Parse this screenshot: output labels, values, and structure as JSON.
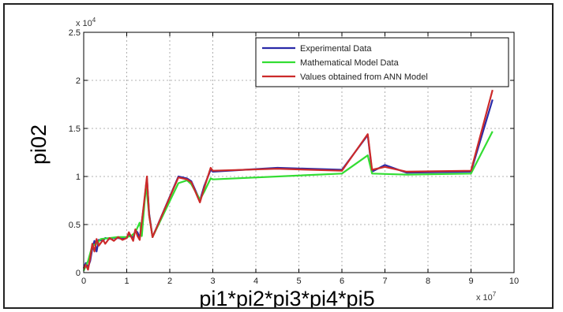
{
  "chart_data": {
    "type": "line",
    "title": "",
    "xlabel": "pi1*pi2*pi3*pi4*pi5",
    "ylabel": "pi02",
    "x_multiplier_label": "x 10",
    "x_multiplier_exponent": "7",
    "y_multiplier_label": "x 10",
    "y_multiplier_exponent": "4",
    "xlim": [
      0,
      10
    ],
    "ylim": [
      0,
      2.5
    ],
    "x_ticks": [
      0,
      1,
      2,
      3,
      4,
      5,
      6,
      7,
      8,
      9,
      10
    ],
    "x_tick_labels": [
      "0",
      "1",
      "2",
      "3",
      "4",
      "5",
      "6",
      "7",
      "8",
      "9",
      "10"
    ],
    "y_ticks": [
      0,
      0.5,
      1,
      1.5,
      2,
      2.5
    ],
    "y_tick_labels": [
      "0",
      "0.5",
      "1",
      "1.5",
      "2",
      "2.5"
    ],
    "grid": true,
    "legend_position": "top-right",
    "series": [
      {
        "name": "Experimental Data",
        "color": "#2a2aa8",
        "points": [
          [
            0.0,
            0.05
          ],
          [
            0.05,
            0.1
          ],
          [
            0.1,
            0.06
          ],
          [
            0.15,
            0.12
          ],
          [
            0.2,
            0.25
          ],
          [
            0.25,
            0.33
          ],
          [
            0.3,
            0.22
          ],
          [
            0.35,
            0.34
          ],
          [
            0.45,
            0.33
          ],
          [
            0.5,
            0.36
          ],
          [
            0.6,
            0.35
          ],
          [
            0.7,
            0.36
          ],
          [
            0.8,
            0.36
          ],
          [
            0.9,
            0.35
          ],
          [
            1.0,
            0.36
          ],
          [
            1.05,
            0.4
          ],
          [
            1.15,
            0.36
          ],
          [
            1.2,
            0.44
          ],
          [
            1.25,
            0.42
          ],
          [
            1.3,
            0.36
          ],
          [
            1.4,
            0.7
          ],
          [
            1.47,
            0.98
          ],
          [
            1.52,
            0.62
          ],
          [
            1.6,
            0.37
          ],
          [
            2.2,
            1.0
          ],
          [
            2.4,
            0.98
          ],
          [
            2.5,
            0.95
          ],
          [
            2.7,
            0.75
          ],
          [
            2.8,
            0.9
          ],
          [
            2.95,
            1.07
          ],
          [
            3.0,
            1.05
          ],
          [
            4.5,
            1.09
          ],
          [
            6.0,
            1.07
          ],
          [
            6.6,
            1.43
          ],
          [
            6.7,
            1.05
          ],
          [
            7.0,
            1.12
          ],
          [
            7.5,
            1.04
          ],
          [
            9.0,
            1.05
          ],
          [
            9.5,
            1.8
          ]
        ]
      },
      {
        "name": "Mathematical Model Data",
        "color": "#33dd33",
        "points": [
          [
            0.0,
            0.02
          ],
          [
            0.1,
            0.12
          ],
          [
            0.2,
            0.28
          ],
          [
            0.3,
            0.3
          ],
          [
            0.4,
            0.35
          ],
          [
            0.6,
            0.36
          ],
          [
            0.8,
            0.37
          ],
          [
            1.0,
            0.37
          ],
          [
            1.1,
            0.38
          ],
          [
            1.2,
            0.42
          ],
          [
            1.3,
            0.52
          ],
          [
            1.35,
            0.38
          ],
          [
            1.45,
            0.92
          ],
          [
            1.52,
            0.6
          ],
          [
            1.6,
            0.37
          ],
          [
            2.2,
            0.93
          ],
          [
            2.4,
            0.96
          ],
          [
            2.5,
            0.92
          ],
          [
            2.7,
            0.76
          ],
          [
            2.8,
            0.84
          ],
          [
            2.95,
            0.98
          ],
          [
            3.0,
            0.97
          ],
          [
            6.0,
            1.03
          ],
          [
            6.6,
            1.22
          ],
          [
            6.7,
            1.03
          ],
          [
            7.5,
            1.02
          ],
          [
            9.0,
            1.03
          ],
          [
            9.5,
            1.47
          ]
        ]
      },
      {
        "name": "Values obtained from ANN Model",
        "color": "#cc2a2a",
        "points": [
          [
            0.0,
            0.04
          ],
          [
            0.05,
            0.08
          ],
          [
            0.1,
            0.03
          ],
          [
            0.15,
            0.15
          ],
          [
            0.2,
            0.3
          ],
          [
            0.25,
            0.22
          ],
          [
            0.3,
            0.35
          ],
          [
            0.35,
            0.28
          ],
          [
            0.45,
            0.34
          ],
          [
            0.5,
            0.3
          ],
          [
            0.6,
            0.36
          ],
          [
            0.7,
            0.33
          ],
          [
            0.8,
            0.37
          ],
          [
            0.9,
            0.34
          ],
          [
            1.0,
            0.36
          ],
          [
            1.05,
            0.42
          ],
          [
            1.15,
            0.33
          ],
          [
            1.2,
            0.45
          ],
          [
            1.25,
            0.38
          ],
          [
            1.3,
            0.34
          ],
          [
            1.4,
            0.72
          ],
          [
            1.47,
            1.0
          ],
          [
            1.52,
            0.6
          ],
          [
            1.6,
            0.37
          ],
          [
            2.2,
            0.99
          ],
          [
            2.4,
            0.97
          ],
          [
            2.5,
            0.94
          ],
          [
            2.7,
            0.73
          ],
          [
            2.8,
            0.88
          ],
          [
            2.95,
            1.09
          ],
          [
            3.0,
            1.06
          ],
          [
            4.5,
            1.08
          ],
          [
            6.0,
            1.06
          ],
          [
            6.6,
            1.44
          ],
          [
            6.7,
            1.07
          ],
          [
            7.0,
            1.1
          ],
          [
            7.5,
            1.05
          ],
          [
            9.0,
            1.06
          ],
          [
            9.5,
            1.9
          ]
        ]
      }
    ]
  }
}
